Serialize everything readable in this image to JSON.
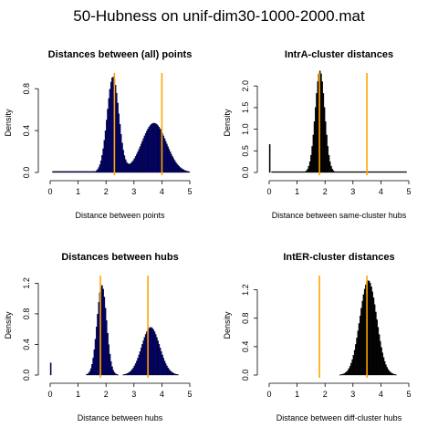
{
  "figure_title": "50-Hubness on unif-dim30-1000-2000.mat",
  "chart_data": [
    {
      "type": "histogram",
      "title": "Distances between (all) points",
      "xlabel": "Distance between points",
      "ylabel": "Density",
      "xlim": [
        0,
        5
      ],
      "ylim": [
        0,
        0.95
      ],
      "xticks": [
        "0",
        "1",
        "2",
        "3",
        "4",
        "5"
      ],
      "yticks": [
        "0.0",
        "0.4",
        "0.8"
      ],
      "bar_color": "#000080",
      "vlines": [
        2.3,
        4.0
      ],
      "vline_color": "#FFA500",
      "components": [
        {
          "weight": 0.48,
          "mean": 2.25,
          "sd": 0.21
        },
        {
          "weight": 0.52,
          "mean": 3.72,
          "sd": 0.44
        }
      ],
      "floor": 0.01
    },
    {
      "type": "histogram",
      "title": "IntrA-cluster distances",
      "xlabel": "Distance between same-cluster hubs",
      "ylabel": "Density",
      "xlim": [
        0,
        5
      ],
      "ylim": [
        0,
        2.3
      ],
      "xticks": [
        "0",
        "1",
        "2",
        "3",
        "4",
        "5"
      ],
      "yticks": [
        "0.0",
        "0.5",
        "1.0",
        "1.5",
        "2.0"
      ],
      "bar_color": "#000000",
      "vlines": [
        1.8,
        3.5
      ],
      "vline_color": "#FFA500",
      "components": [
        {
          "weight": 1.0,
          "mean": 1.82,
          "sd": 0.17
        }
      ],
      "spikes": [
        {
          "x": 0.0,
          "y": 0.65
        }
      ],
      "floor": 0.02
    },
    {
      "type": "histogram",
      "title": "Distances between hubs",
      "xlabel": "Distance between hubs",
      "ylabel": "Density",
      "xlim": [
        0,
        5
      ],
      "ylim": [
        0,
        1.3
      ],
      "xticks": [
        "0",
        "1",
        "2",
        "3",
        "4",
        "5"
      ],
      "yticks": [
        "0.0",
        "0.4",
        "0.8",
        "1.2"
      ],
      "bar_color": "#000080",
      "vlines": [
        1.8,
        3.5
      ],
      "vline_color": "#FFA500",
      "components": [
        {
          "weight": 0.5,
          "mean": 1.85,
          "sd": 0.17
        },
        {
          "weight": 0.5,
          "mean": 3.6,
          "sd": 0.32
        }
      ],
      "spikes": [
        {
          "x": 0.0,
          "y": 0.16
        }
      ],
      "floor": 0.0
    },
    {
      "type": "histogram",
      "title": "IntER-cluster distances",
      "xlabel": "Distance between diff-cluster hubs",
      "ylabel": "Density",
      "xlim": [
        0,
        5
      ],
      "ylim": [
        0,
        1.4
      ],
      "xticks": [
        "0",
        "1",
        "2",
        "3",
        "4",
        "5"
      ],
      "yticks": [
        "0.0",
        "0.4",
        "0.8",
        "1.2"
      ],
      "bar_color": "#000000",
      "vlines": [
        1.8,
        3.5
      ],
      "vline_color": "#FFA500",
      "components": [
        {
          "weight": 1.0,
          "mean": 3.55,
          "sd": 0.3
        }
      ],
      "floor": 0.0
    }
  ]
}
